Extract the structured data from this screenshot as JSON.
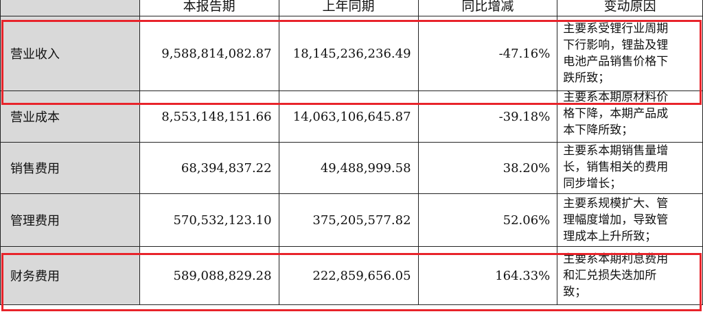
{
  "header": {
    "current_period": "本报告期",
    "prior_year_period": "上年同期",
    "yoy_change": "同比增减",
    "change_reason": "变动原因"
  },
  "rows": [
    {
      "item": "营业收入",
      "current": "9,588,814,082.87",
      "prior": "18,145,236,236.49",
      "change": "-47.16%",
      "reason_lines": [
        "主要系受锂行业周期",
        "下行影响，锂盐及锂",
        "电池产品销售价格下",
        "跌所致；"
      ]
    },
    {
      "item": "营业成本",
      "current": "8,553,148,151.66",
      "prior": "14,063,106,645.87",
      "change": "-39.18%",
      "reason_lines": [
        "主要系本期原材料价",
        "格下降，本期产品成",
        "本下降所致；"
      ]
    },
    {
      "item": "销售费用",
      "current": "68,394,837.22",
      "prior": "49,488,999.58",
      "change": "38.20%",
      "reason_lines": [
        "主要系本期销售量增",
        "长，销售相关的费用",
        "同步增长；"
      ]
    },
    {
      "item": "管理费用",
      "current": "570,532,123.10",
      "prior": "375,205,577.82",
      "change": "52.06%",
      "reason_lines": [
        "主要系规模扩大、管",
        "理幅度增加，导致管",
        "理成本上升所致；"
      ]
    },
    {
      "item": "财务费用",
      "current": "589,088,829.28",
      "prior": "222,859,656.05",
      "change": "164.33%",
      "reason_lines": [
        "主要系本期利息费用",
        "和汇兑损失迭加所",
        "致；"
      ]
    }
  ],
  "highlight_color": "#e8232a"
}
